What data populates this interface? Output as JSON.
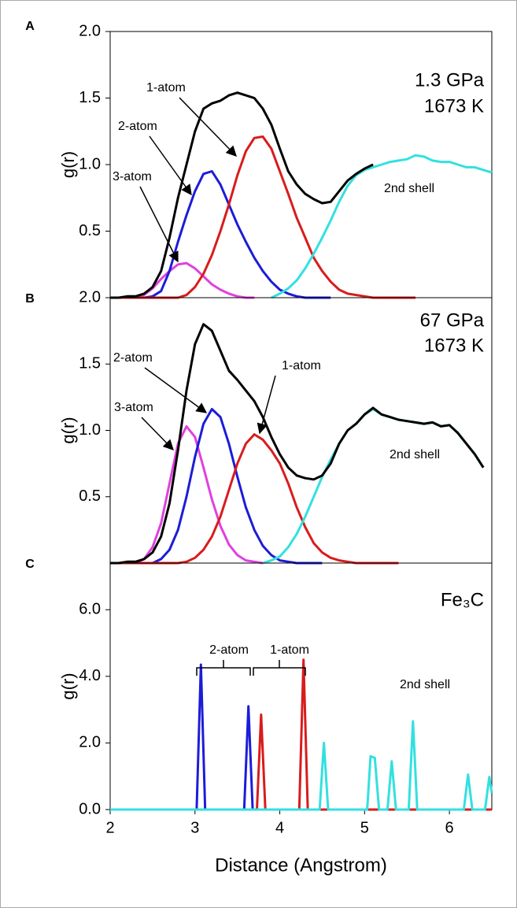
{
  "chart_data": [
    {
      "type": "line",
      "panel_label": "A",
      "y_label": "g(r)",
      "x": [
        2,
        2.1,
        2.2,
        2.3,
        2.4,
        2.5,
        2.6,
        2.7,
        2.8,
        2.9,
        3,
        3.1,
        3.2,
        3.3,
        3.4,
        3.5,
        3.6,
        3.7,
        3.8,
        3.9,
        4,
        4.1,
        4.2,
        4.3,
        4.4,
        4.5,
        4.6,
        4.7,
        4.8,
        4.9,
        5,
        5.1,
        5.2,
        5.3,
        5.4,
        5.5,
        5.6,
        5.7,
        5.8,
        5.9,
        6,
        6.1,
        6.2,
        6.3,
        6.4,
        6.5
      ],
      "xlim": [
        2,
        6.5
      ],
      "ylim": [
        0,
        2
      ],
      "yticks": [
        0.5,
        {
          "value": 1,
          "label": "1.0"
        },
        1.5,
        {
          "value": 2,
          "label": "2.0"
        }
      ],
      "series": [
        {
          "color": "#e040e0",
          "values": [
            0,
            0,
            0,
            0,
            0.02,
            0.07,
            0.14,
            0.2,
            0.25,
            0.26,
            0.22,
            0.16,
            0.1,
            0.06,
            0.03,
            0.01,
            0,
            0,
            null,
            null,
            null,
            null,
            null,
            null,
            null,
            null,
            null,
            null,
            null,
            null,
            null,
            null,
            null,
            null,
            null,
            null,
            null,
            null,
            null,
            null,
            null,
            null,
            null,
            null,
            null,
            null
          ]
        },
        {
          "color": "#1c1cd8",
          "values": [
            0,
            0,
            0,
            0,
            0,
            0.01,
            0.05,
            0.2,
            0.42,
            0.62,
            0.8,
            0.93,
            0.95,
            0.85,
            0.7,
            0.55,
            0.42,
            0.3,
            0.2,
            0.12,
            0.06,
            0.03,
            0.01,
            0,
            0,
            0,
            0,
            null,
            null,
            null,
            null,
            null,
            null,
            null,
            null,
            null,
            null,
            null,
            null,
            null,
            null,
            null,
            null,
            null,
            null,
            null
          ]
        },
        {
          "color": "#d81c1c",
          "values": [
            0,
            0,
            0,
            0,
            0,
            0,
            0,
            0,
            0,
            0.02,
            0.08,
            0.18,
            0.32,
            0.5,
            0.7,
            0.92,
            1.1,
            1.2,
            1.21,
            1.12,
            0.95,
            0.78,
            0.6,
            0.45,
            0.3,
            0.2,
            0.12,
            0.06,
            0.03,
            0.02,
            0.01,
            0,
            0,
            0,
            0,
            0,
            0,
            null,
            null,
            null,
            null,
            null,
            null,
            null,
            null,
            null
          ]
        },
        {
          "color": "#33e0e0",
          "values": [
            null,
            null,
            null,
            null,
            null,
            null,
            null,
            null,
            null,
            null,
            null,
            null,
            null,
            null,
            null,
            null,
            null,
            null,
            null,
            0,
            0.03,
            0.07,
            0.13,
            0.22,
            0.33,
            0.45,
            0.58,
            0.72,
            0.84,
            0.92,
            0.96,
            0.98,
            1,
            1.02,
            1.03,
            1.04,
            1.07,
            1.06,
            1.03,
            1.02,
            1.02,
            1,
            0.98,
            0.98,
            0.96,
            0.94
          ]
        },
        {
          "color": "#000000",
          "values": [
            0,
            0,
            0.01,
            0.01,
            0.03,
            0.08,
            0.2,
            0.45,
            0.75,
            1,
            1.25,
            1.42,
            1.46,
            1.48,
            1.52,
            1.54,
            1.52,
            1.5,
            1.42,
            1.3,
            1.12,
            0.95,
            0.85,
            0.78,
            0.74,
            0.71,
            0.72,
            0.8,
            0.88,
            0.93,
            0.97,
            1,
            null,
            null,
            null,
            null,
            null,
            null,
            null,
            null,
            null,
            null,
            null,
            null,
            null,
            null
          ]
        }
      ],
      "annotations": [
        "1.3 GPa",
        "1673 K",
        "1-atom",
        "2-atom",
        "3-atom",
        "2nd shell"
      ]
    },
    {
      "type": "line",
      "panel_label": "B",
      "y_label": "g(r)",
      "x": [
        2,
        2.1,
        2.2,
        2.3,
        2.4,
        2.5,
        2.6,
        2.7,
        2.8,
        2.9,
        3,
        3.1,
        3.2,
        3.3,
        3.4,
        3.5,
        3.6,
        3.7,
        3.8,
        3.9,
        4,
        4.1,
        4.2,
        4.3,
        4.4,
        4.5,
        4.6,
        4.7,
        4.8,
        4.9,
        5,
        5.1,
        5.2,
        5.3,
        5.4,
        5.5,
        5.6,
        5.7,
        5.8,
        5.9,
        6,
        6.1,
        6.2,
        6.3,
        6.4,
        6.5
      ],
      "xlim": [
        2,
        6.5
      ],
      "ylim": [
        0,
        2
      ],
      "yticks": [
        0.5,
        {
          "value": 1,
          "label": "1.0"
        },
        1.5,
        {
          "value": 2,
          "label": "2.0"
        }
      ],
      "series": [
        {
          "color": "#e040e0",
          "values": [
            0,
            0,
            0,
            0,
            0.03,
            0.12,
            0.3,
            0.6,
            0.9,
            1.03,
            0.95,
            0.72,
            0.48,
            0.28,
            0.14,
            0.06,
            0.02,
            0.01,
            0,
            null,
            null,
            null,
            null,
            null,
            null,
            null,
            null,
            null,
            null,
            null,
            null,
            null,
            null,
            null,
            null,
            null,
            null,
            null,
            null,
            null,
            null,
            null,
            null,
            null,
            null,
            null
          ]
        },
        {
          "color": "#1c1cd8",
          "values": [
            0,
            0,
            0,
            0,
            0,
            0,
            0.03,
            0.1,
            0.25,
            0.5,
            0.8,
            1.05,
            1.16,
            1.1,
            0.9,
            0.65,
            0.42,
            0.25,
            0.13,
            0.06,
            0.02,
            0.01,
            0,
            0,
            0,
            0,
            null,
            null,
            null,
            null,
            null,
            null,
            null,
            null,
            null,
            null,
            null,
            null,
            null,
            null,
            null,
            null,
            null,
            null,
            null,
            null
          ]
        },
        {
          "color": "#d81c1c",
          "values": [
            0,
            0,
            0,
            0,
            0,
            0,
            0,
            0,
            0,
            0.01,
            0.04,
            0.1,
            0.2,
            0.35,
            0.55,
            0.75,
            0.9,
            0.97,
            0.93,
            0.85,
            0.75,
            0.6,
            0.42,
            0.27,
            0.15,
            0.08,
            0.04,
            0.02,
            0.01,
            0,
            0,
            0,
            0,
            0,
            0,
            null,
            null,
            null,
            null,
            null,
            null,
            null,
            null,
            null,
            null,
            null
          ]
        },
        {
          "color": "#33e0e0",
          "values": [
            null,
            null,
            null,
            null,
            null,
            null,
            null,
            null,
            null,
            null,
            null,
            null,
            null,
            null,
            null,
            null,
            null,
            null,
            0,
            0.02,
            0.05,
            0.12,
            0.22,
            0.35,
            0.5,
            0.65,
            0.78,
            0.9,
            1,
            1.05,
            1.12,
            1.16,
            1.12,
            1.1,
            1.08,
            1.07,
            1.06,
            1.05,
            1.06,
            1.03,
            1.04,
            0.98,
            0.9,
            0.82,
            0.72,
            null
          ]
        },
        {
          "color": "#000000",
          "values": [
            0,
            0,
            0.01,
            0.01,
            0.03,
            0.08,
            0.2,
            0.45,
            0.85,
            1.3,
            1.65,
            1.8,
            1.75,
            1.6,
            1.45,
            1.38,
            1.3,
            1.22,
            1.1,
            0.95,
            0.82,
            0.72,
            0.66,
            0.64,
            0.63,
            0.66,
            0.75,
            0.9,
            1,
            1.05,
            1.12,
            1.17,
            1.12,
            1.1,
            1.08,
            1.07,
            1.06,
            1.05,
            1.06,
            1.03,
            1.04,
            0.98,
            0.9,
            0.82,
            0.72,
            null
          ]
        }
      ],
      "annotations": [
        "67 GPa",
        "1673 K",
        "2-atom",
        "3-atom",
        "1-atom",
        "2nd shell"
      ]
    },
    {
      "type": "line",
      "panel_label": "C",
      "y_label": "g(r)",
      "x_label": "Distance (Angstrom)",
      "x": [
        2,
        3.02,
        3.07,
        3.12,
        3.58,
        3.63,
        3.68,
        3.73,
        3.78,
        3.83,
        4.23,
        4.28,
        4.33,
        4.47,
        4.52,
        4.57,
        5.03,
        5.07,
        5.12,
        5.17,
        5.27,
        5.32,
        5.37,
        5.52,
        5.57,
        5.62,
        6.17,
        6.22,
        6.27,
        6.42,
        6.47,
        6.5
      ],
      "xlim": [
        2,
        6.5
      ],
      "ylim": [
        0,
        7.4
      ],
      "xticks": [
        2,
        3,
        4,
        5,
        6
      ],
      "yticks": [
        {
          "value": 0,
          "label": "0.0"
        },
        {
          "value": 2,
          "label": "2.0"
        },
        {
          "value": 4,
          "label": "4.0"
        },
        {
          "value": 6,
          "label": "6.0"
        }
      ],
      "series": [
        {
          "color": "#1c1cd8",
          "values": [
            0,
            0,
            4.35,
            0,
            0,
            3.1,
            0,
            0,
            0,
            0,
            0,
            0,
            0,
            0,
            0,
            0,
            0,
            0,
            0,
            0,
            0,
            0,
            0,
            0,
            0,
            0,
            0,
            0,
            0,
            0,
            0,
            0
          ]
        },
        {
          "color": "#d81c1c",
          "values": [
            0,
            0,
            0,
            0,
            0,
            0,
            0,
            0,
            2.85,
            0,
            0,
            4.5,
            0,
            0,
            0,
            0,
            0,
            0,
            0,
            0,
            0,
            0,
            0,
            0,
            0,
            0,
            0,
            0,
            0,
            0,
            0,
            0
          ]
        },
        {
          "color": "#33e0e0",
          "values": [
            0,
            0,
            0,
            0,
            0,
            0,
            0,
            0,
            0,
            0,
            0,
            0,
            0,
            0,
            2,
            0,
            0,
            1.6,
            1.55,
            0,
            0,
            1.45,
            0,
            0,
            2.65,
            0,
            0,
            1.05,
            0,
            0,
            0.98,
            0.5
          ]
        }
      ],
      "annotations": [
        "Fe₃C",
        "2-atom",
        "1-atom",
        "2nd shell"
      ]
    }
  ]
}
